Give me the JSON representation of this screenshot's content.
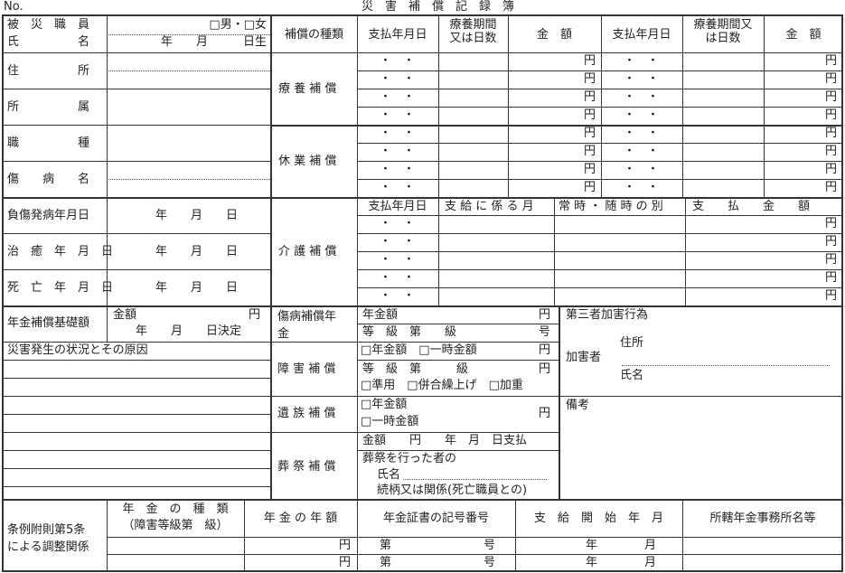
{
  "header": {
    "no": "No.",
    "title": "災　害　補　償　記　録　簿"
  },
  "left": {
    "name_label_1": "被　災　職　員",
    "name_label_2": "氏　　　　　名",
    "sex": "□男・□女",
    "birth": "年　　月　　　日生",
    "address": "住　　　　　所",
    "affiliation": "所　　　　　属",
    "job": "職　　　　　種",
    "injury": "傷　　病　　名",
    "onset": "負傷発病年月日",
    "cure": "治　癒　年　月　日",
    "death": "死　亡　年　月　日",
    "ymd": "年　　月　　日",
    "basis": "年金補償基礎額",
    "basis_amount": "金額",
    "basis_yen": "円",
    "basis_decided": "年　　月　　日決定",
    "situation": "災害発生の状況とその原因"
  },
  "comp": {
    "kind": "補償の種類",
    "pay_date": "支払年月日",
    "period": "療養期間\n又は日数",
    "amount": "金　額",
    "pay_date2": "支払年月日",
    "period2": "療養期間又\nは日数",
    "amount2": "金　額",
    "medical": "療 養 補 償",
    "leave": "休 業 補 償",
    "care": "介 護 補 償",
    "care_pay_date": "支払年月日",
    "care_month": "支 給 に 係 る 月",
    "care_type": "常 時 ・ 随 時 の 別",
    "care_amount": "支　　払　　金　　額",
    "dots": "・　・",
    "yen": "円"
  },
  "pension": {
    "sick_label": "傷病補償年\n金",
    "sick_amount": "年金額",
    "sick_grade": "等　級　第　　級",
    "yen": "円",
    "go": "号",
    "disability_label": "障 害 補 償",
    "dis_choice": "□年金額　□一時金額",
    "dis_grade": "等　級　第　　　級",
    "dis_opts": "□準用　□併合繰上げ　□加重",
    "survivor_label": "遺 族 補 償",
    "surv_1": "□年金額",
    "surv_2": "□一時金額",
    "funeral_label": "葬 祭 補 償",
    "fun_pay": "金額　　円　　年　月　日支払",
    "fun_person": "葬祭を行った者の",
    "fun_name": "氏名",
    "fun_rel": "続柄又は関係(死亡職員との)",
    "third_party": "第三者加害行為",
    "assailant": "加害者",
    "assailant_addr": "住所",
    "assailant_name": "氏名",
    "remarks": "備考"
  },
  "bottom": {
    "label": "条例附則第5条\nによる調整関係",
    "kind": "年　金　の　種　類\n（障害等級第　級）",
    "annual": "年 金 の 年 額",
    "cert": "年金証書の記号番号",
    "start": "支　給　開　始　年　月",
    "office": "所轄年金事務所名等",
    "yen": "円",
    "dai": "第",
    "go": "号",
    "ym": "年　　　　月"
  }
}
